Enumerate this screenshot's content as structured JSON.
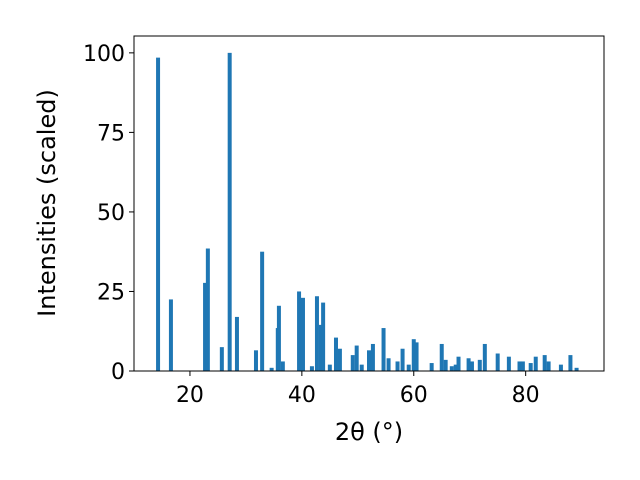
{
  "chart_data": {
    "type": "bar",
    "xlabel": "2θ (°)",
    "ylabel": "Intensities (scaled)",
    "color": "#1f77b4",
    "x": [
      14.3,
      16.6,
      22.7,
      23.2,
      25.7,
      27.1,
      28.4,
      31.8,
      32.9,
      34.6,
      35.7,
      35.9,
      36.6,
      39.5,
      40.2,
      41.8,
      42.7,
      43.4,
      43.8,
      45.0,
      46.1,
      46.8,
      49.1,
      49.8,
      50.7,
      52.0,
      52.7,
      54.6,
      55.5,
      57.1,
      58.0,
      59.1,
      60.0,
      60.5,
      63.2,
      65.0,
      65.7,
      66.8,
      67.5,
      68.0,
      69.8,
      70.4,
      71.8,
      72.7,
      75.0,
      77.0,
      78.9,
      79.5,
      80.9,
      81.8,
      83.4,
      84.1,
      86.3,
      88.0,
      89.1
    ],
    "values": [
      98.5,
      22.5,
      27.7,
      38.5,
      7.5,
      100,
      17,
      6.5,
      37.5,
      1,
      13.5,
      20.5,
      3,
      25,
      23,
      1.5,
      23.5,
      14.5,
      21.5,
      2,
      10.5,
      7,
      5,
      8,
      2,
      6.5,
      8.5,
      13.5,
      4,
      3,
      7,
      2,
      10,
      9,
      2.5,
      8.5,
      3.5,
      1.5,
      2,
      4.5,
      4,
      3,
      3.5,
      8.5,
      5.5,
      4.5,
      3,
      3,
      2.5,
      4.5,
      5,
      3,
      2,
      5,
      1
    ],
    "xlim": [
      10,
      94
    ],
    "ylim": [
      0,
      105.3
    ],
    "xticks": [
      20,
      40,
      60,
      80
    ],
    "yticks": [
      0,
      25,
      50,
      75,
      100
    ]
  }
}
